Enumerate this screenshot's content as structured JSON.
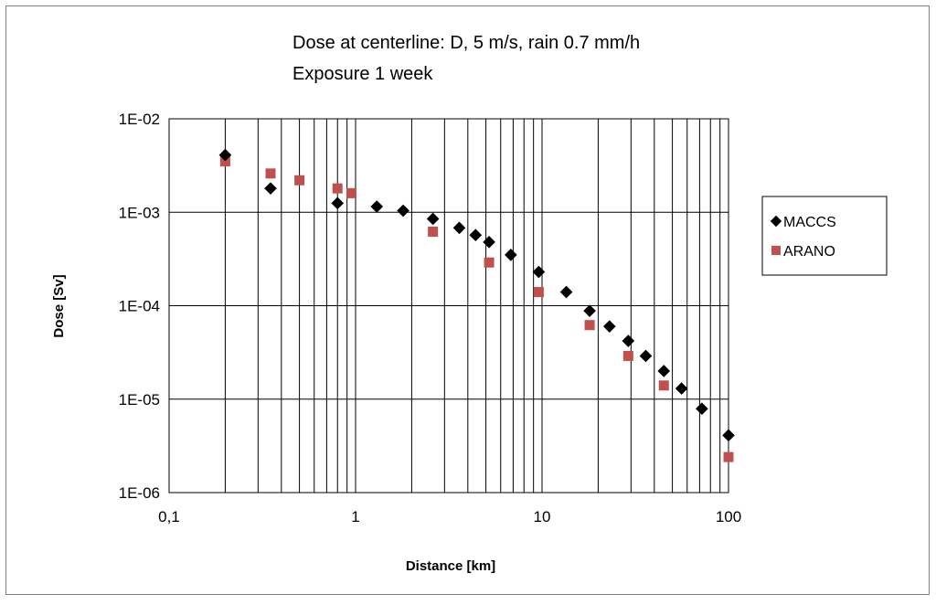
{
  "chart_data": {
    "type": "scatter",
    "title_lines": [
      "Dose at centerline: D, 5 m/s, rain 0.7 mm/h",
      "Exposure 1 week"
    ],
    "xlabel": "Distance [km]",
    "ylabel": "Dose [Sv]",
    "x_scale": "log",
    "y_scale": "log",
    "xlim": [
      0.1,
      100
    ],
    "ylim": [
      1e-06,
      0.01
    ],
    "x_ticks": [
      0.1,
      1,
      10,
      100
    ],
    "x_tick_labels": [
      "0,1",
      "1",
      "10",
      "100"
    ],
    "y_ticks": [
      0.01,
      0.001,
      0.0001,
      1e-05,
      1e-06
    ],
    "y_tick_labels": [
      "1E-02",
      "1E-03",
      "1E-04",
      "1E-05",
      "1E-06"
    ],
    "grid": "vertical minor and major gridlines, horizontal gridlines at each decade",
    "legend_position": "right",
    "series": [
      {
        "name": "MACCS",
        "marker": "diamond",
        "color": "#000000",
        "x": [
          0.2,
          0.35,
          0.8,
          1.3,
          1.8,
          2.6,
          3.6,
          4.4,
          5.2,
          6.8,
          9.6,
          13.5,
          18,
          23,
          29,
          36,
          45,
          56,
          72,
          100
        ],
        "y": [
          0.0041,
          0.0018,
          0.00125,
          0.00115,
          0.00104,
          0.00085,
          0.00068,
          0.00057,
          0.00048,
          0.00035,
          0.00023,
          0.00014,
          8.8e-05,
          6e-05,
          4.2e-05,
          2.9e-05,
          2e-05,
          1.3e-05,
          7.9e-06,
          4.1e-06
        ]
      },
      {
        "name": "ARANO",
        "marker": "square",
        "color": "#C0504D",
        "x": [
          0.2,
          0.35,
          0.5,
          0.8,
          0.95,
          2.6,
          5.2,
          9.6,
          18,
          29,
          45,
          100
        ],
        "y": [
          0.0035,
          0.0026,
          0.0022,
          0.0018,
          0.0016,
          0.00062,
          0.00029,
          0.00014,
          6.2e-05,
          2.9e-05,
          1.4e-05,
          2.4e-06
        ]
      }
    ]
  }
}
